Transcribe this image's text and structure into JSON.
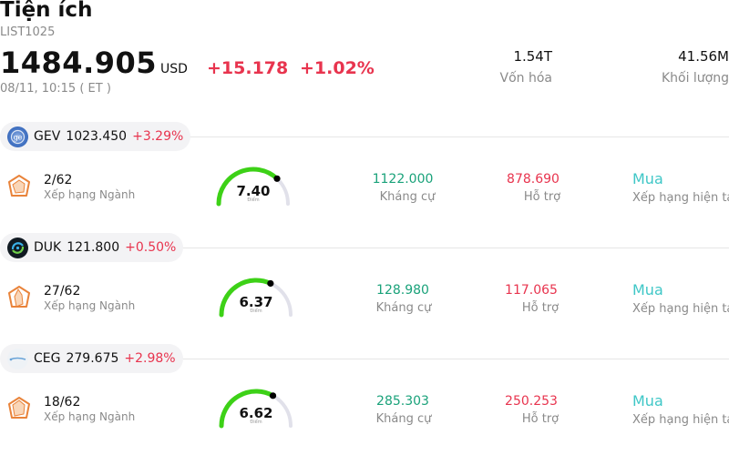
{
  "header": {
    "title": "Tiện ích",
    "code": "LIST1025",
    "price": "1484.905",
    "currency": "USD",
    "change": "+15.178",
    "change_pct": "+1.02%",
    "time": "08/11, 10:15  ( ET )",
    "stats": [
      {
        "value": "1.54T",
        "label": "Vốn hóa"
      },
      {
        "value": "41.56M",
        "label": "Khối lượng"
      }
    ]
  },
  "colors": {
    "up_red": "#e8344e",
    "green": "#1aa27a",
    "teal": "#3fc7c7",
    "gauge_green": "#3dd117"
  },
  "stocks": [
    {
      "symbol": "GEV",
      "price": "1023.450",
      "change_pct": "+3.29%",
      "logo_icon": "ge-vernova-logo-icon",
      "rank": "2/62",
      "rank_label": "Xếp hạng Ngành",
      "score": "7.40",
      "score_fraction": 0.74,
      "score_caption": "Điểm",
      "resistance": "1122.000",
      "resistance_label": "Kháng cự",
      "support": "878.690",
      "support_label": "Hỗ trợ",
      "recommendation": "Mua",
      "recommendation_label": "Xếp hạng hiện tại"
    },
    {
      "symbol": "DUK",
      "price": "121.800",
      "change_pct": "+0.50%",
      "logo_icon": "duke-energy-logo-icon",
      "rank": "27/62",
      "rank_label": "Xếp hạng Ngành",
      "score": "6.37",
      "score_fraction": 0.637,
      "score_caption": "Điểm",
      "resistance": "128.980",
      "resistance_label": "Kháng cự",
      "support": "117.065",
      "support_label": "Hỗ trợ",
      "recommendation": "Mua",
      "recommendation_label": "Xếp hạng hiện tại"
    },
    {
      "symbol": "CEG",
      "price": "279.675",
      "change_pct": "+2.98%",
      "logo_icon": "constellation-logo-icon",
      "rank": "18/62",
      "rank_label": "Xếp hạng Ngành",
      "score": "6.62",
      "score_fraction": 0.662,
      "score_caption": "Điểm",
      "resistance": "285.303",
      "resistance_label": "Kháng cự",
      "support": "250.253",
      "support_label": "Hỗ trợ",
      "recommendation": "Mua",
      "recommendation_label": "Xếp hạng hiện tại"
    }
  ]
}
